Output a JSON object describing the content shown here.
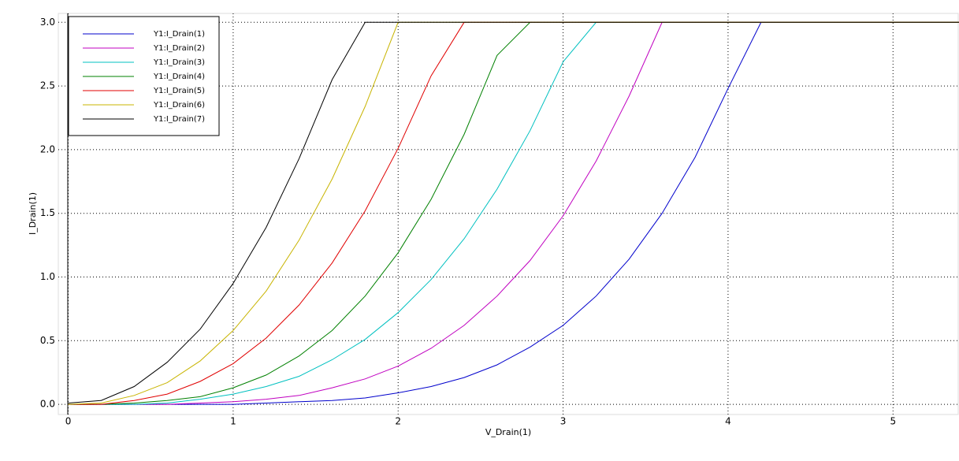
{
  "chart_data": {
    "type": "line",
    "xlabel": "V_Drain(1)",
    "ylabel": "I_Drain(1)",
    "x": [
      0,
      0.2,
      0.4,
      0.6,
      0.8,
      1.0,
      1.2,
      1.4,
      1.6,
      1.8,
      2.0,
      2.2,
      2.4,
      2.6,
      2.8,
      3.0,
      3.2,
      3.4,
      3.6,
      3.8,
      4.0,
      4.2,
      4.4,
      4.6,
      4.8,
      5.0,
      5.2,
      5.4
    ],
    "series": [
      {
        "name": "Y1:I_Drain(1)",
        "color": "#0000cc",
        "values": [
          0,
          0,
          0,
          0,
          0,
          0,
          0.01,
          0.02,
          0.03,
          0.05,
          0.09,
          0.14,
          0.21,
          0.31,
          0.45,
          0.62,
          0.85,
          1.14,
          1.5,
          1.94,
          2.48,
          3,
          3,
          3,
          3,
          3,
          3,
          3
        ]
      },
      {
        "name": "Y1:I_Drain(2)",
        "color": "#c000c0",
        "values": [
          0,
          0,
          0,
          0,
          0.01,
          0.02,
          0.04,
          0.07,
          0.13,
          0.2,
          0.3,
          0.44,
          0.62,
          0.85,
          1.13,
          1.48,
          1.91,
          2.42,
          3,
          3,
          3,
          3,
          3,
          3,
          3,
          3,
          3,
          3
        ]
      },
      {
        "name": "Y1:I_Drain(3)",
        "color": "#00c0c0",
        "values": [
          0,
          0,
          0,
          0.01,
          0.04,
          0.08,
          0.14,
          0.22,
          0.35,
          0.51,
          0.72,
          0.98,
          1.3,
          1.69,
          2.15,
          2.69,
          3,
          3,
          3,
          3,
          3,
          3,
          3,
          3,
          3,
          3,
          3,
          3
        ]
      },
      {
        "name": "Y1:I_Drain(4)",
        "color": "#008000",
        "values": [
          0,
          0,
          0.01,
          0.03,
          0.06,
          0.13,
          0.23,
          0.38,
          0.58,
          0.85,
          1.19,
          1.61,
          2.12,
          2.74,
          3,
          3,
          3,
          3,
          3,
          3,
          3,
          3,
          3,
          3,
          3,
          3,
          3,
          3
        ]
      },
      {
        "name": "Y1:I_Drain(5)",
        "color": "#e00000",
        "values": [
          0,
          0,
          0.03,
          0.08,
          0.18,
          0.32,
          0.52,
          0.78,
          1.11,
          1.52,
          2.01,
          2.58,
          3,
          3,
          3,
          3,
          3,
          3,
          3,
          3,
          3,
          3,
          3,
          3,
          3,
          3,
          3,
          3
        ]
      },
      {
        "name": "Y1:I_Drain(6)",
        "color": "#c8b400",
        "values": [
          0,
          0.01,
          0.07,
          0.17,
          0.34,
          0.58,
          0.89,
          1.29,
          1.77,
          2.34,
          3,
          3,
          3,
          3,
          3,
          3,
          3,
          3,
          3,
          3,
          3,
          3,
          3,
          3,
          3,
          3,
          3,
          3
        ]
      },
      {
        "name": "Y1:I_Drain(7)",
        "color": "#000000",
        "values": [
          0.01,
          0.03,
          0.14,
          0.33,
          0.59,
          0.95,
          1.39,
          1.93,
          2.55,
          3,
          3,
          3,
          3,
          3,
          3,
          3,
          3,
          3,
          3,
          3,
          3,
          3,
          3,
          3,
          3,
          3,
          3,
          3
        ]
      }
    ],
    "xlim": [
      -0.06,
      5.4
    ],
    "ylim": [
      -0.08,
      3.07
    ],
    "xticks": [
      0,
      1,
      2,
      3,
      4,
      5
    ],
    "yticks": [
      {
        "value": 0,
        "label": "0.0"
      },
      {
        "value": 0.5,
        "label": "0.5"
      },
      {
        "value": 1,
        "label": "1.0"
      },
      {
        "value": 1.5,
        "label": "1.5"
      },
      {
        "value": 2,
        "label": "2.0"
      },
      {
        "value": 2.5,
        "label": "2.5"
      },
      {
        "value": 3,
        "label": "3.0"
      }
    ],
    "grid": true,
    "legend": "upper left"
  }
}
